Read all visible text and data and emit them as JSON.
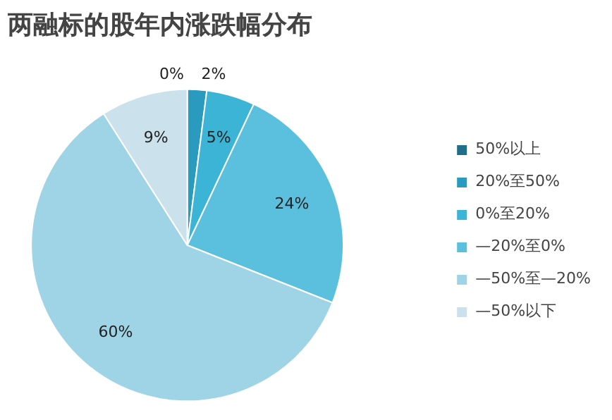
{
  "chart_data": {
    "type": "pie",
    "title": "两融标的股年内涨跌幅分布",
    "categories": [
      "50%以上",
      "20%至50%",
      "0%至20%",
      "—20%至0%",
      "—50%至—20%",
      "—50%以下"
    ],
    "values": [
      0,
      2,
      5,
      24,
      60,
      9
    ],
    "colors": [
      "#1f6f8b",
      "#2a9bbf",
      "#3bb4d6",
      "#5bc0de",
      "#9fd3e6",
      "#cbe2ec"
    ],
    "value_labels": [
      "0%",
      "2%",
      "5%",
      "24%",
      "60%",
      "9%"
    ],
    "legend": "right"
  }
}
